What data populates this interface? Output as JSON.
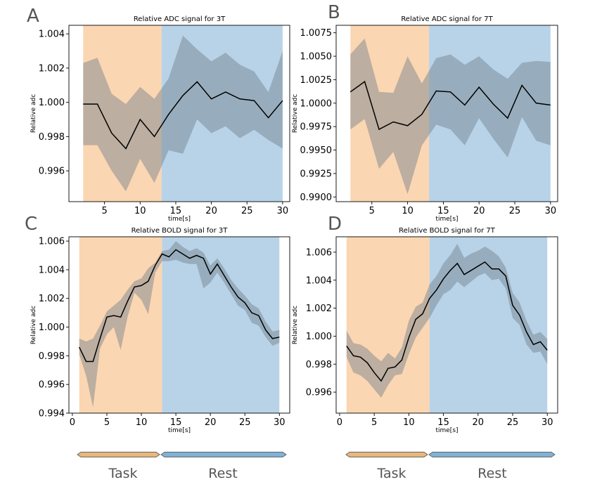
{
  "colors": {
    "task_fill": "#fbd6b2",
    "rest_fill": "#b8d3e8",
    "band_fill": "#6e7e8a",
    "line": "#000000",
    "task_arrow": "#e8b87a",
    "rest_arrow": "#7fb2d6"
  },
  "phases": {
    "task": "Task",
    "rest": "Rest"
  },
  "chart_data": [
    {
      "id": "A",
      "letter": "A",
      "type": "line",
      "title": "Relative ADC signal for 3T",
      "xlabel": "time[s]",
      "ylabel": "Relative adc",
      "xlim": [
        0,
        31
      ],
      "ylim": [
        0.9942,
        1.0045
      ],
      "xticks": [
        5,
        10,
        15,
        20,
        25,
        30
      ],
      "xtick_labels": [
        "5",
        "10",
        "15",
        "20",
        "25",
        "30"
      ],
      "yticks": [
        0.996,
        0.998,
        1.0,
        1.002,
        1.004
      ],
      "ytick_labels": [
        "0.996",
        "0.998",
        "1.000",
        "1.002",
        "1.004"
      ],
      "task_span": [
        2,
        13
      ],
      "rest_span": [
        13,
        30
      ],
      "x": [
        2,
        4,
        6,
        8,
        10,
        12,
        14,
        16,
        18,
        20,
        22,
        24,
        26,
        28,
        30
      ],
      "mean": [
        0.9999,
        0.9999,
        0.9982,
        0.9973,
        0.999,
        0.998,
        0.9993,
        1.0004,
        1.0012,
        1.0002,
        1.0006,
        1.0002,
        1.0001,
        0.9991,
        1.0001
      ],
      "lower": [
        0.9975,
        0.9975,
        0.996,
        0.9948,
        0.9967,
        0.9953,
        0.9972,
        0.997,
        0.999,
        0.9982,
        0.9986,
        0.9979,
        0.9984,
        0.9978,
        0.9973
      ],
      "upper": [
        1.0023,
        1.0026,
        1.0005,
        0.9999,
        1.0009,
        1.0002,
        1.0014,
        1.0039,
        1.0031,
        1.0024,
        1.0029,
        1.0022,
        1.0018,
        1.0006,
        1.003
      ]
    },
    {
      "id": "B",
      "letter": "B",
      "type": "line",
      "title": "Relative ADC signal for 7T",
      "xlabel": "time[s]",
      "ylabel": "Relative adc",
      "xlim": [
        0,
        31
      ],
      "ylim": [
        0.9895,
        1.0083
      ],
      "xticks": [
        5,
        10,
        15,
        20,
        25,
        30
      ],
      "xtick_labels": [
        "5",
        "10",
        "15",
        "20",
        "25",
        "30"
      ],
      "yticks": [
        0.99,
        0.9925,
        0.995,
        0.9975,
        1.0,
        1.0025,
        1.005,
        1.0075
      ],
      "ytick_labels": [
        "0.9900",
        "0.9925",
        "0.9950",
        "0.9975",
        "1.0000",
        "1.0025",
        "1.0050",
        "1.0075"
      ],
      "task_span": [
        2,
        13
      ],
      "rest_span": [
        13,
        30
      ],
      "x": [
        2,
        4,
        6,
        8,
        10,
        12,
        14,
        16,
        18,
        20,
        22,
        24,
        26,
        28,
        30
      ],
      "mean": [
        1.0012,
        1.0023,
        0.9972,
        0.998,
        0.9976,
        0.9988,
        1.0013,
        1.0012,
        0.9998,
        1.0017,
        0.9999,
        0.9984,
        1.0019,
        1.0,
        0.9998
      ],
      "lower": [
        0.9972,
        0.9983,
        0.993,
        0.9948,
        0.9903,
        0.9955,
        0.9977,
        0.9972,
        0.9955,
        0.9984,
        0.9962,
        0.9942,
        0.9985,
        0.996,
        0.9955
      ],
      "upper": [
        1.0052,
        1.0069,
        1.0012,
        1.0011,
        1.005,
        1.0021,
        1.0048,
        1.0052,
        1.0041,
        1.005,
        1.0036,
        1.0026,
        1.0043,
        1.0045,
        1.0044
      ]
    },
    {
      "id": "C",
      "letter": "C",
      "type": "line",
      "title": "Relative BOLD signal for 3T",
      "xlabel": "time[s]",
      "ylabel": "Relative adc",
      "xlim": [
        -0.5,
        31.5
      ],
      "ylim": [
        0.994,
        1.0063
      ],
      "xticks": [
        0,
        5,
        10,
        15,
        20,
        25,
        30
      ],
      "xtick_labels": [
        "0",
        "5",
        "10",
        "15",
        "20",
        "25",
        "30"
      ],
      "yticks": [
        0.994,
        0.996,
        0.998,
        1.0,
        1.002,
        1.004,
        1.006
      ],
      "ytick_labels": [
        "0.994",
        "0.996",
        "0.998",
        "1.000",
        "1.002",
        "1.004",
        "1.006"
      ],
      "task_span": [
        1,
        13
      ],
      "rest_span": [
        13,
        30
      ],
      "x": [
        1,
        2,
        3,
        4,
        5,
        6,
        7,
        8,
        9,
        10,
        11,
        12,
        13,
        14,
        15,
        16,
        17,
        18,
        19,
        20,
        21,
        22,
        23,
        24,
        25,
        26,
        27,
        28,
        29,
        30
      ],
      "mean": [
        0.9986,
        0.9976,
        0.9976,
        0.9992,
        1.0007,
        1.0008,
        1.0007,
        1.0018,
        1.0028,
        1.0029,
        1.0032,
        1.0043,
        1.0051,
        1.0049,
        1.0054,
        1.0051,
        1.0048,
        1.005,
        1.0048,
        1.0037,
        1.0044,
        1.0036,
        1.0028,
        1.0021,
        1.0017,
        1.001,
        1.0008,
        0.9998,
        0.9992,
        0.9993
      ],
      "lower": [
        0.9981,
        0.9966,
        0.9944,
        0.9985,
        0.9995,
        1.0,
        0.9984,
        1.0007,
        1.0024,
        1.0019,
        1.0009,
        1.0038,
        1.0046,
        1.0046,
        1.0047,
        1.0045,
        1.0044,
        1.0044,
        1.0027,
        1.0031,
        1.0038,
        1.0031,
        1.0023,
        1.0015,
        1.0012,
        1.0003,
        1.0001,
        0.9993,
        0.9987,
        0.9989
      ],
      "upper": [
        0.9992,
        0.999,
        0.9992,
        1.0001,
        1.0011,
        1.0015,
        1.0019,
        1.0026,
        1.0032,
        1.0034,
        1.0041,
        1.0045,
        1.0053,
        1.0054,
        1.006,
        1.0056,
        1.0053,
        1.0055,
        1.0052,
        1.0043,
        1.0048,
        1.0041,
        1.0033,
        1.0027,
        1.0022,
        1.0016,
        1.0013,
        1.0004,
        0.9997,
        0.9998
      ]
    },
    {
      "id": "D",
      "letter": "D",
      "type": "line",
      "title": "Relative BOLD signal for 7T",
      "xlabel": "time[s]",
      "ylabel": "Relative adc",
      "xlim": [
        -0.5,
        31.5
      ],
      "ylim": [
        0.9945,
        1.0071
      ],
      "xticks": [
        0,
        5,
        10,
        15,
        20,
        25,
        30
      ],
      "xtick_labels": [
        "0",
        "5",
        "10",
        "15",
        "20",
        "25",
        "30"
      ],
      "yticks": [
        0.996,
        0.998,
        1.0,
        1.002,
        1.004,
        1.006
      ],
      "ytick_labels": [
        "0.996",
        "0.998",
        "1.000",
        "1.002",
        "1.004",
        "1.006"
      ],
      "task_span": [
        1,
        13
      ],
      "rest_span": [
        13,
        30
      ],
      "x": [
        1,
        2,
        3,
        4,
        5,
        6,
        7,
        8,
        9,
        10,
        11,
        12,
        13,
        14,
        15,
        16,
        17,
        18,
        19,
        20,
        21,
        22,
        23,
        24,
        25,
        26,
        27,
        28,
        29,
        30
      ],
      "mean": [
        0.9993,
        0.9986,
        0.9985,
        0.9981,
        0.9974,
        0.9968,
        0.9977,
        0.9978,
        0.9983,
        0.9999,
        1.0012,
        1.0016,
        1.0027,
        1.0033,
        1.0041,
        1.0047,
        1.0052,
        1.0044,
        1.0047,
        1.005,
        1.0053,
        1.0048,
        1.0048,
        1.0043,
        1.0022,
        1.0015,
        1.0003,
        0.9994,
        0.9996,
        0.999
      ],
      "lower": [
        0.9985,
        0.9974,
        0.9972,
        0.9968,
        0.9962,
        0.9956,
        0.9965,
        0.9972,
        0.9973,
        0.9987,
        0.9999,
        1.0006,
        1.0013,
        1.0022,
        1.003,
        1.0033,
        1.0039,
        1.0035,
        1.0039,
        1.0043,
        1.0045,
        1.004,
        1.0041,
        1.0034,
        1.0013,
        1.0008,
        0.9994,
        0.9988,
        0.9989,
        0.998
      ],
      "upper": [
        1.0004,
        0.9995,
        0.9994,
        0.9991,
        0.9986,
        0.9982,
        0.9988,
        0.9984,
        0.9992,
        1.0011,
        1.0021,
        1.0024,
        1.0037,
        1.0043,
        1.0052,
        1.0058,
        1.0066,
        1.0056,
        1.0059,
        1.0061,
        1.0064,
        1.0061,
        1.0057,
        1.0049,
        1.0031,
        1.0024,
        1.0011,
        1.0001,
        1.0003,
        0.9998
      ]
    }
  ]
}
